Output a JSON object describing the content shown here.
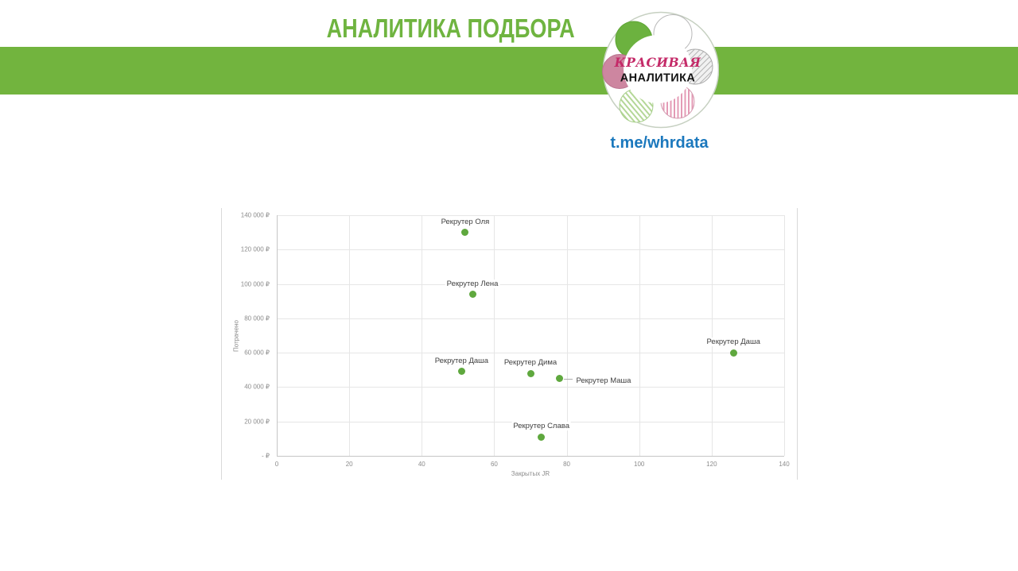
{
  "header": {
    "title": "АНАЛИТИКА ПОДБОРА",
    "title_color": "#6fb440",
    "band_color": "#72b43e"
  },
  "logo": {
    "top_text": "КРАСИВАЯ",
    "bottom_text": "АНАЛИТИКА",
    "top_text_color": "#c42a68",
    "bottom_text_color": "#141414"
  },
  "link": {
    "text": "t.me/whrdata",
    "color": "#1b78bd"
  },
  "chart_data": {
    "type": "scatter",
    "title": "",
    "xlabel": "Закрытых JR",
    "ylabel": "Потрачено",
    "xlim": [
      0,
      140
    ],
    "ylim": [
      0,
      140000
    ],
    "grid": true,
    "legend": "none",
    "point_color": "#5fa83e",
    "x_ticks": [
      0,
      20,
      40,
      60,
      80,
      100,
      120,
      140
    ],
    "y_ticks": [
      {
        "value": 0,
        "label": "- ₽"
      },
      {
        "value": 20000,
        "label": "20 000 ₽"
      },
      {
        "value": 40000,
        "label": "40 000 ₽"
      },
      {
        "value": 60000,
        "label": "60 000 ₽"
      },
      {
        "value": 80000,
        "label": "80 000 ₽"
      },
      {
        "value": 100000,
        "label": "100 000 ₽"
      },
      {
        "value": 120000,
        "label": "120 000 ₽"
      },
      {
        "value": 140000,
        "label": "140 000 ₽"
      }
    ],
    "points": [
      {
        "name": "Рекрутер Оля",
        "x": 52,
        "y": 130000,
        "label_pos": "above"
      },
      {
        "name": "Рекрутер Лена",
        "x": 54,
        "y": 94000,
        "label_pos": "above"
      },
      {
        "name": "Рекрутер Даша",
        "x": 51,
        "y": 49000,
        "label_pos": "above"
      },
      {
        "name": "Рекрутер Дима",
        "x": 70,
        "y": 48000,
        "label_pos": "above"
      },
      {
        "name": "Рекрутер Маша",
        "x": 78,
        "y": 45000,
        "label_pos": "right"
      },
      {
        "name": "Рекрутер Слава",
        "x": 73,
        "y": 11000,
        "label_pos": "above"
      },
      {
        "name": "Рекрутер Даша",
        "x": 126,
        "y": 60000,
        "label_pos": "above"
      }
    ]
  }
}
